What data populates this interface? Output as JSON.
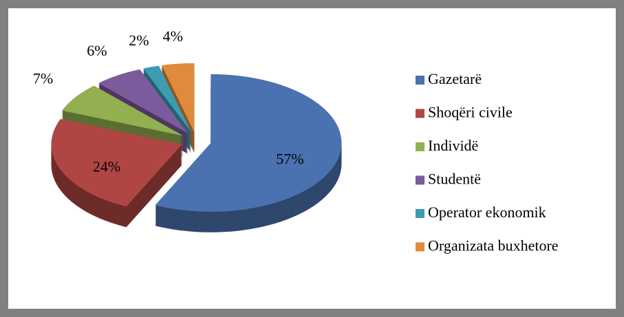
{
  "chart_data": {
    "type": "pie",
    "categories": [
      "Gazetarë",
      "Shoqëri civile",
      "Individë",
      "Studentë",
      "Operator ekonomik",
      "Organizata buxhetore"
    ],
    "values": [
      57,
      24,
      7,
      6,
      2,
      4
    ],
    "value_labels": [
      "57%",
      "24%",
      "7%",
      "6%",
      "2%",
      "4%"
    ],
    "colors": [
      "#4a72b0",
      "#b04643",
      "#93b050",
      "#7b5b9c",
      "#3d9bb2",
      "#e08a3c"
    ],
    "legend": "right"
  }
}
